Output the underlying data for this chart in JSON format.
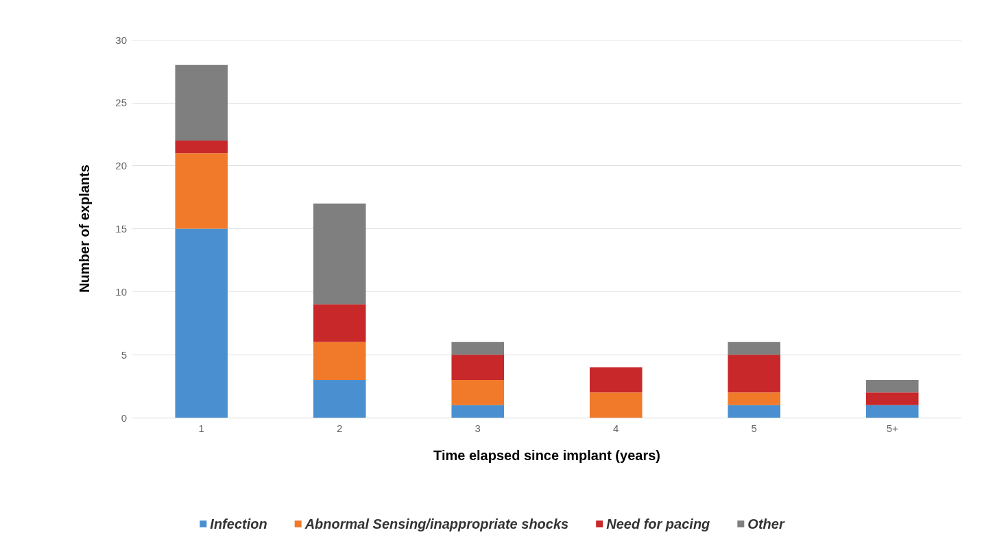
{
  "chart_data": {
    "type": "bar",
    "stacked": true,
    "xlabel": "Time elapsed since implant (years)",
    "ylabel": "Number of explants",
    "categories": [
      "1",
      "2",
      "3",
      "4",
      "5",
      "5+"
    ],
    "series": [
      {
        "name": "Infection",
        "color": "#4a90d0",
        "values": [
          15,
          3,
          1,
          0,
          1,
          1
        ]
      },
      {
        "name": "Abnormal Sensing/inappropriate shocks",
        "color": "#f07a2a",
        "values": [
          6,
          3,
          2,
          2,
          1,
          0
        ]
      },
      {
        "name": "Need for pacing",
        "color": "#c8282a",
        "values": [
          1,
          3,
          2,
          2,
          3,
          1
        ]
      },
      {
        "name": "Other",
        "color": "#7f7f7f",
        "values": [
          6,
          8,
          1,
          0,
          1,
          1
        ]
      }
    ],
    "ylim": [
      0,
      30
    ],
    "yticks": [
      0,
      5,
      10,
      15,
      20,
      25,
      30
    ],
    "grid": "y",
    "legend": "bottom"
  }
}
